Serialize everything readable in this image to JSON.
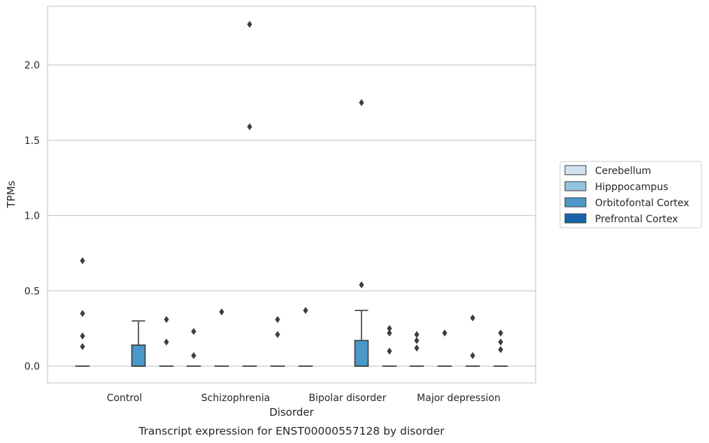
{
  "caption": "Transcript expression for ENST00000557128 by disorder",
  "chart_data": {
    "type": "box",
    "xlabel": "Disorder",
    "ylabel": "TPMs",
    "ylim": [
      -0.11,
      2.4
    ],
    "yticks": [
      "0.0",
      "0.5",
      "1.0",
      "1.5",
      "2.0"
    ],
    "categories": [
      "Control",
      "Schizophrenia",
      "Bipolar disorder",
      "Major depression"
    ],
    "grid": "horizontal",
    "legend_position": "right",
    "series": [
      {
        "name": "Cerebellum",
        "color": "#d0e1f2"
      },
      {
        "name": "Hipppocampus",
        "color": "#94c4df"
      },
      {
        "name": "Orbitofontal Cortex",
        "color": "#4a98c9"
      },
      {
        "name": "Prefrontal Cortex",
        "color": "#1764ab"
      }
    ],
    "boxes": [
      {
        "category": "Control",
        "series": "Cerebellum",
        "q1": 0,
        "median": 0,
        "q3": 0,
        "whisker_low": 0,
        "whisker_high": 0,
        "outliers": [
          0.13,
          0.2,
          0.35,
          0.7
        ]
      },
      {
        "category": "Control",
        "series": "Orbitofontal Cortex",
        "q1": 0,
        "median": 0,
        "q3": 0.14,
        "whisker_low": 0,
        "whisker_high": 0.3,
        "outliers": []
      },
      {
        "category": "Control",
        "series": "Prefrontal Cortex",
        "q1": 0,
        "median": 0,
        "q3": 0,
        "whisker_low": 0,
        "whisker_high": 0,
        "outliers": [
          0.16,
          0.31
        ]
      },
      {
        "category": "Schizophrenia",
        "series": "Cerebellum",
        "q1": 0,
        "median": 0,
        "q3": 0,
        "whisker_low": 0,
        "whisker_high": 0,
        "outliers": [
          0.07,
          0.23
        ]
      },
      {
        "category": "Schizophrenia",
        "series": "Hipppocampus",
        "q1": 0,
        "median": 0,
        "q3": 0,
        "whisker_low": 0,
        "whisker_high": 0,
        "outliers": [
          0.36
        ]
      },
      {
        "category": "Schizophrenia",
        "series": "Orbitofontal Cortex",
        "q1": 0,
        "median": 0,
        "q3": 0,
        "whisker_low": 0,
        "whisker_high": 0,
        "outliers": [
          1.59,
          2.27
        ]
      },
      {
        "category": "Schizophrenia",
        "series": "Prefrontal Cortex",
        "q1": 0,
        "median": 0,
        "q3": 0,
        "whisker_low": 0,
        "whisker_high": 0,
        "outliers": [
          0.21,
          0.31
        ]
      },
      {
        "category": "Bipolar disorder",
        "series": "Cerebellum",
        "q1": 0,
        "median": 0,
        "q3": 0,
        "whisker_low": 0,
        "whisker_high": 0,
        "outliers": [
          0.37
        ]
      },
      {
        "category": "Bipolar disorder",
        "series": "Orbitofontal Cortex",
        "q1": 0,
        "median": 0,
        "q3": 0.17,
        "whisker_low": 0,
        "whisker_high": 0.37,
        "outliers": [
          0.54,
          1.75
        ]
      },
      {
        "category": "Bipolar disorder",
        "series": "Prefrontal Cortex",
        "q1": 0,
        "median": 0,
        "q3": 0,
        "whisker_low": 0,
        "whisker_high": 0,
        "outliers": [
          0.1,
          0.22,
          0.25
        ]
      },
      {
        "category": "Major depression",
        "series": "Cerebellum",
        "q1": 0,
        "median": 0,
        "q3": 0,
        "whisker_low": 0,
        "whisker_high": 0,
        "outliers": [
          0.12,
          0.17,
          0.21
        ]
      },
      {
        "category": "Major depression",
        "series": "Hipppocampus",
        "q1": 0,
        "median": 0,
        "q3": 0,
        "whisker_low": 0,
        "whisker_high": 0,
        "outliers": [
          0.22
        ]
      },
      {
        "category": "Major depression",
        "series": "Orbitofontal Cortex",
        "q1": 0,
        "median": 0,
        "q3": 0,
        "whisker_low": 0,
        "whisker_high": 0,
        "outliers": [
          0.07,
          0.32
        ]
      },
      {
        "category": "Major depression",
        "series": "Prefrontal Cortex",
        "q1": 0,
        "median": 0,
        "q3": 0,
        "whisker_low": 0,
        "whisker_high": 0,
        "outliers": [
          0.11,
          0.16,
          0.22
        ]
      }
    ]
  }
}
